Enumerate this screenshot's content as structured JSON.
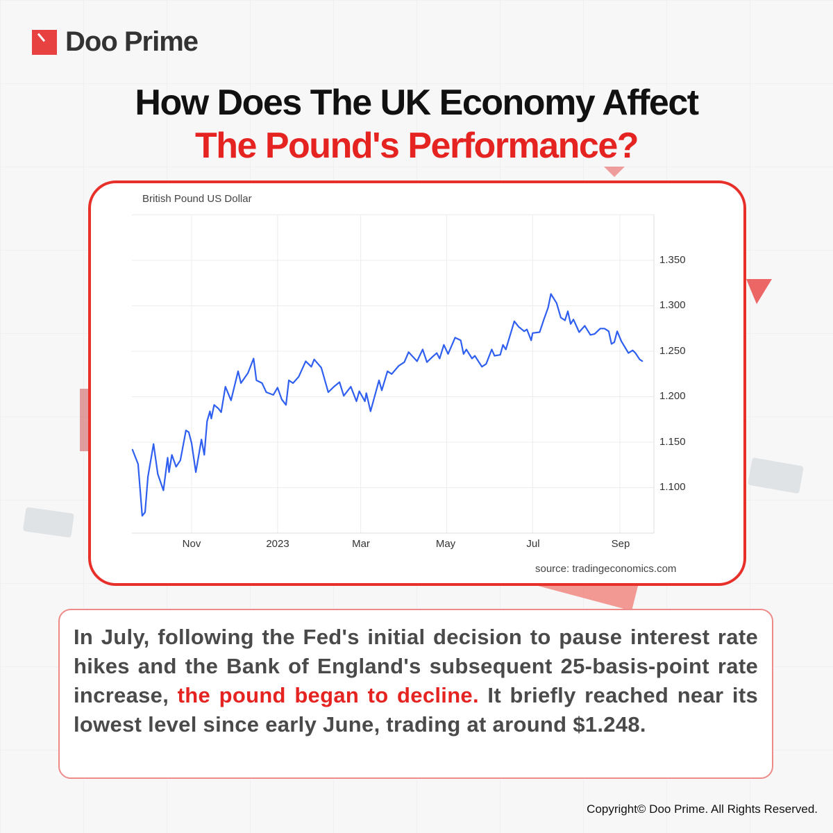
{
  "brand": {
    "name": "Doo Prime",
    "accent": "#e52421"
  },
  "title": {
    "line1": "How Does The UK Economy Affect",
    "line2": "The Pound's Performance?"
  },
  "chart_data": {
    "type": "line",
    "title": "British Pound US Dollar",
    "source": "source: tradingeconomics.com",
    "xlabel": "",
    "ylabel": "",
    "x_tick_labels": [
      "Nov",
      "2023",
      "Mar",
      "May",
      "Jul",
      "Sep"
    ],
    "x_tick_dates": [
      "2022-11-01",
      "2023-01-01",
      "2023-03-01",
      "2023-05-01",
      "2023-07-01",
      "2023-09-01"
    ],
    "y_tick_labels": [
      "1.350",
      "1.300",
      "1.250",
      "1.200",
      "1.150",
      "1.100"
    ],
    "y_ticks": [
      1.35,
      1.3,
      1.25,
      1.2,
      1.15,
      1.1
    ],
    "ylim": [
      1.05,
      1.4
    ],
    "grid": true,
    "y_axis_side": "right",
    "line_color": "#2f5ff0",
    "series": [
      {
        "points": [
          [
            "2022-09-20",
            1.142
          ],
          [
            "2022-09-24",
            1.126
          ],
          [
            "2022-09-27",
            1.069
          ],
          [
            "2022-09-29",
            1.073
          ],
          [
            "2022-10-01",
            1.112
          ],
          [
            "2022-10-05",
            1.148
          ],
          [
            "2022-10-08",
            1.115
          ],
          [
            "2022-10-12",
            1.097
          ],
          [
            "2022-10-15",
            1.133
          ],
          [
            "2022-10-16",
            1.117
          ],
          [
            "2022-10-18",
            1.136
          ],
          [
            "2022-10-21",
            1.123
          ],
          [
            "2022-10-24",
            1.13
          ],
          [
            "2022-10-28",
            1.163
          ],
          [
            "2022-10-30",
            1.161
          ],
          [
            "2022-11-01",
            1.149
          ],
          [
            "2022-11-04",
            1.117
          ],
          [
            "2022-11-08",
            1.153
          ],
          [
            "2022-11-10",
            1.136
          ],
          [
            "2022-11-12",
            1.173
          ],
          [
            "2022-11-14",
            1.184
          ],
          [
            "2022-11-15",
            1.176
          ],
          [
            "2022-11-17",
            1.191
          ],
          [
            "2022-11-20",
            1.187
          ],
          [
            "2022-11-22",
            1.183
          ],
          [
            "2022-11-25",
            1.211
          ],
          [
            "2022-11-29",
            1.196
          ],
          [
            "2022-12-04",
            1.228
          ],
          [
            "2022-12-06",
            1.215
          ],
          [
            "2022-12-11",
            1.226
          ],
          [
            "2022-12-15",
            1.242
          ],
          [
            "2022-12-17",
            1.218
          ],
          [
            "2022-12-21",
            1.215
          ],
          [
            "2022-12-24",
            1.205
          ],
          [
            "2022-12-29",
            1.202
          ],
          [
            "2023-01-01",
            1.21
          ],
          [
            "2023-01-04",
            1.197
          ],
          [
            "2023-01-07",
            1.191
          ],
          [
            "2023-01-09",
            1.218
          ],
          [
            "2023-01-12",
            1.215
          ],
          [
            "2023-01-16",
            1.222
          ],
          [
            "2023-01-21",
            1.239
          ],
          [
            "2023-01-25",
            1.233
          ],
          [
            "2023-01-27",
            1.241
          ],
          [
            "2023-02-01",
            1.232
          ],
          [
            "2023-02-06",
            1.205
          ],
          [
            "2023-02-10",
            1.211
          ],
          [
            "2023-02-14",
            1.216
          ],
          [
            "2023-02-17",
            1.201
          ],
          [
            "2023-02-22",
            1.211
          ],
          [
            "2023-02-26",
            1.195
          ],
          [
            "2023-02-28",
            1.206
          ],
          [
            "2023-03-04",
            1.195
          ],
          [
            "2023-03-05",
            1.204
          ],
          [
            "2023-03-08",
            1.184
          ],
          [
            "2023-03-14",
            1.218
          ],
          [
            "2023-03-16",
            1.207
          ],
          [
            "2023-03-20",
            1.228
          ],
          [
            "2023-03-23",
            1.225
          ],
          [
            "2023-03-28",
            1.234
          ],
          [
            "2023-04-01",
            1.238
          ],
          [
            "2023-04-04",
            1.249
          ],
          [
            "2023-04-10",
            1.239
          ],
          [
            "2023-04-14",
            1.252
          ],
          [
            "2023-04-17",
            1.238
          ],
          [
            "2023-04-21",
            1.244
          ],
          [
            "2023-04-24",
            1.248
          ],
          [
            "2023-04-26",
            1.242
          ],
          [
            "2023-04-29",
            1.257
          ],
          [
            "2023-05-02",
            1.247
          ],
          [
            "2023-05-07",
            1.265
          ],
          [
            "2023-05-11",
            1.262
          ],
          [
            "2023-05-13",
            1.247
          ],
          [
            "2023-05-15",
            1.252
          ],
          [
            "2023-05-19",
            1.242
          ],
          [
            "2023-05-21",
            1.245
          ],
          [
            "2023-05-26",
            1.233
          ],
          [
            "2023-05-29",
            1.236
          ],
          [
            "2023-06-02",
            1.252
          ],
          [
            "2023-06-04",
            1.245
          ],
          [
            "2023-06-08",
            1.246
          ],
          [
            "2023-06-10",
            1.257
          ],
          [
            "2023-06-12",
            1.252
          ],
          [
            "2023-06-18",
            1.283
          ],
          [
            "2023-06-21",
            1.277
          ],
          [
            "2023-06-25",
            1.272
          ],
          [
            "2023-06-27",
            1.274
          ],
          [
            "2023-06-30",
            1.262
          ],
          [
            "2023-07-01",
            1.27
          ],
          [
            "2023-07-06",
            1.271
          ],
          [
            "2023-07-09",
            1.285
          ],
          [
            "2023-07-12",
            1.298
          ],
          [
            "2023-07-14",
            1.313
          ],
          [
            "2023-07-18",
            1.303
          ],
          [
            "2023-07-21",
            1.287
          ],
          [
            "2023-07-24",
            1.284
          ],
          [
            "2023-07-26",
            1.294
          ],
          [
            "2023-07-28",
            1.28
          ],
          [
            "2023-07-30",
            1.285
          ],
          [
            "2023-08-03",
            1.271
          ],
          [
            "2023-08-07",
            1.278
          ],
          [
            "2023-08-11",
            1.268
          ],
          [
            "2023-08-14",
            1.269
          ],
          [
            "2023-08-18",
            1.275
          ],
          [
            "2023-08-21",
            1.275
          ],
          [
            "2023-08-24",
            1.272
          ],
          [
            "2023-08-26",
            1.258
          ],
          [
            "2023-08-28",
            1.26
          ],
          [
            "2023-08-30",
            1.272
          ],
          [
            "2023-09-02",
            1.261
          ],
          [
            "2023-09-07",
            1.248
          ],
          [
            "2023-09-10",
            1.251
          ],
          [
            "2023-09-12",
            1.248
          ],
          [
            "2023-09-15",
            1.241
          ],
          [
            "2023-09-17",
            1.239
          ]
        ]
      }
    ]
  },
  "body": {
    "before": "In July, following the Fed's initial decision to pause interest rate hikes and the Bank of England's subsequent 25-basis-point rate increase, ",
    "highlight": "the pound began to decline.",
    "after": " It briefly reached near its lowest level since early June, trading at around $1.248."
  },
  "footer": {
    "copyright": "Copyright© Doo Prime. All Rights Reserved."
  }
}
